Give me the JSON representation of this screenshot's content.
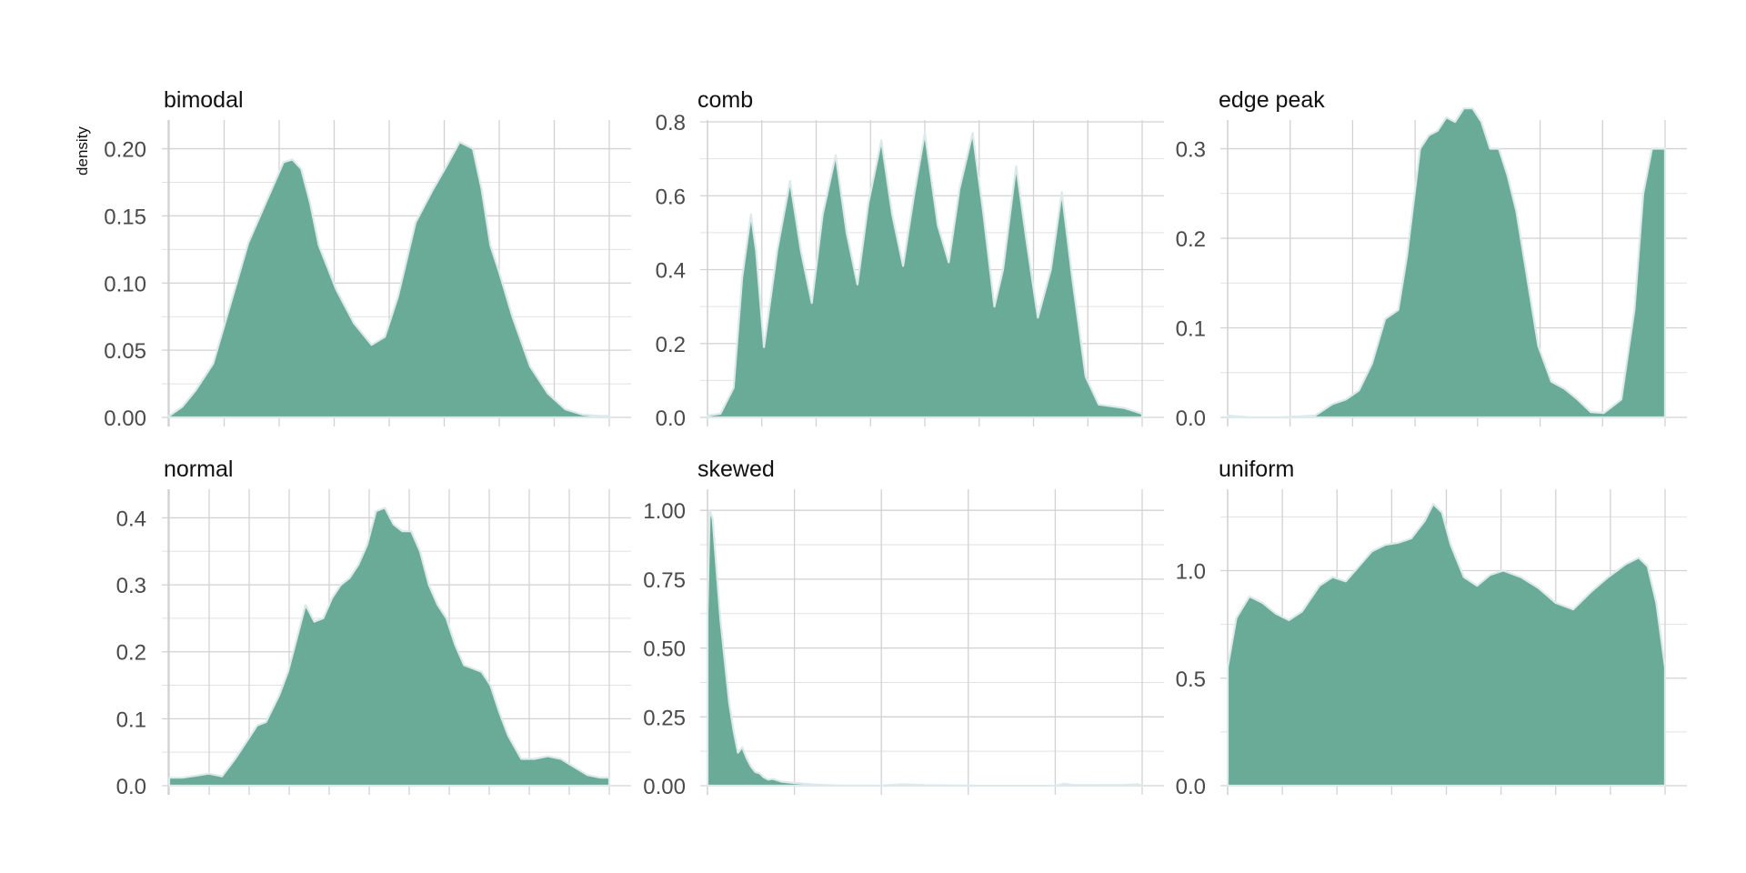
{
  "colors": {
    "fill": "#69ab97",
    "outline": "#dde9ea",
    "grid": "#d2d2d2",
    "text": "#111111",
    "tick_text": "#4a4a4a"
  },
  "y_axis_title": "density",
  "chart_data": [
    {
      "type": "area",
      "title": "bimodal",
      "grid": true,
      "ylim": [
        0,
        0.22
      ],
      "yticks": [
        0.0,
        0.05,
        0.1,
        0.15,
        0.2
      ],
      "ytick_labels": [
        "0.00",
        "0.05",
        "0.10",
        "0.15",
        "0.20"
      ],
      "xticks": 9,
      "x": [
        0,
        0.03,
        0.06,
        0.1,
        0.14,
        0.18,
        0.22,
        0.26,
        0.28,
        0.3,
        0.32,
        0.34,
        0.38,
        0.42,
        0.46,
        0.49,
        0.52,
        0.56,
        0.6,
        0.63,
        0.66,
        0.69,
        0.71,
        0.73,
        0.75,
        0.78,
        0.82,
        0.86,
        0.9,
        0.94,
        0.98,
        1.0
      ],
      "y": [
        0.001,
        0.008,
        0.02,
        0.04,
        0.085,
        0.13,
        0.16,
        0.19,
        0.192,
        0.185,
        0.16,
        0.128,
        0.095,
        0.07,
        0.054,
        0.06,
        0.09,
        0.145,
        0.17,
        0.187,
        0.205,
        0.2,
        0.17,
        0.128,
        0.108,
        0.075,
        0.038,
        0.018,
        0.006,
        0.002,
        0.001,
        0.001
      ]
    },
    {
      "type": "area",
      "title": "comb",
      "grid": true,
      "ylim": [
        0,
        0.8
      ],
      "yticks": [
        0.0,
        0.2,
        0.4,
        0.6,
        0.8
      ],
      "ytick_labels": [
        "0.0",
        "0.2",
        "0.4",
        "0.6",
        "0.8"
      ],
      "xticks": 9,
      "x": [
        0,
        0.03,
        0.06,
        0.08,
        0.1,
        0.112,
        0.13,
        0.16,
        0.19,
        0.215,
        0.24,
        0.265,
        0.295,
        0.32,
        0.345,
        0.37,
        0.4,
        0.425,
        0.45,
        0.475,
        0.5,
        0.53,
        0.555,
        0.58,
        0.61,
        0.635,
        0.66,
        0.68,
        0.71,
        0.735,
        0.76,
        0.79,
        0.815,
        0.84,
        0.87,
        0.9,
        0.93,
        0.96,
        1.0
      ],
      "y": [
        0.005,
        0.01,
        0.08,
        0.38,
        0.55,
        0.45,
        0.19,
        0.45,
        0.64,
        0.45,
        0.31,
        0.55,
        0.71,
        0.5,
        0.36,
        0.58,
        0.75,
        0.55,
        0.41,
        0.6,
        0.77,
        0.52,
        0.42,
        0.62,
        0.77,
        0.55,
        0.3,
        0.4,
        0.68,
        0.47,
        0.27,
        0.4,
        0.61,
        0.37,
        0.11,
        0.035,
        0.03,
        0.025,
        0.01
      ]
    },
    {
      "type": "area",
      "title": "edge peak",
      "grid": true,
      "ylim": [
        0,
        0.33
      ],
      "yticks": [
        0.0,
        0.1,
        0.2,
        0.3
      ],
      "ytick_labels": [
        "0.0",
        "0.1",
        "0.2",
        "0.3"
      ],
      "xticks": 8,
      "x": [
        0,
        0.05,
        0.12,
        0.2,
        0.24,
        0.27,
        0.3,
        0.33,
        0.36,
        0.39,
        0.41,
        0.44,
        0.46,
        0.48,
        0.5,
        0.52,
        0.54,
        0.56,
        0.58,
        0.6,
        0.62,
        0.64,
        0.66,
        0.68,
        0.71,
        0.74,
        0.77,
        0.8,
        0.83,
        0.86,
        0.9,
        0.93,
        0.95,
        0.97,
        0.99,
        1.0
      ],
      "y": [
        0.002,
        0.0,
        0.0,
        0.002,
        0.015,
        0.02,
        0.03,
        0.06,
        0.11,
        0.12,
        0.18,
        0.3,
        0.315,
        0.32,
        0.335,
        0.33,
        0.345,
        0.345,
        0.33,
        0.3,
        0.3,
        0.27,
        0.23,
        0.17,
        0.08,
        0.04,
        0.032,
        0.02,
        0.006,
        0.005,
        0.02,
        0.12,
        0.25,
        0.3,
        0.3,
        0.3
      ]
    },
    {
      "type": "area",
      "title": "normal",
      "grid": true,
      "ylim": [
        0,
        0.44
      ],
      "yticks": [
        0.0,
        0.1,
        0.2,
        0.3,
        0.4
      ],
      "ytick_labels": [
        "0.0",
        "0.1",
        "0.2",
        "0.3",
        "0.4"
      ],
      "xticks": 12,
      "x": [
        0,
        0.03,
        0.06,
        0.09,
        0.12,
        0.15,
        0.18,
        0.2,
        0.22,
        0.25,
        0.27,
        0.29,
        0.31,
        0.33,
        0.35,
        0.37,
        0.39,
        0.41,
        0.43,
        0.45,
        0.47,
        0.49,
        0.51,
        0.53,
        0.55,
        0.57,
        0.59,
        0.61,
        0.63,
        0.65,
        0.67,
        0.69,
        0.71,
        0.73,
        0.75,
        0.77,
        0.8,
        0.83,
        0.86,
        0.89,
        0.92,
        0.95,
        0.98,
        1.0
      ],
      "y": [
        0.012,
        0.012,
        0.015,
        0.018,
        0.014,
        0.04,
        0.07,
        0.09,
        0.095,
        0.135,
        0.17,
        0.22,
        0.27,
        0.245,
        0.25,
        0.28,
        0.3,
        0.31,
        0.33,
        0.36,
        0.41,
        0.415,
        0.39,
        0.38,
        0.38,
        0.35,
        0.3,
        0.27,
        0.25,
        0.21,
        0.18,
        0.175,
        0.17,
        0.15,
        0.11,
        0.075,
        0.04,
        0.04,
        0.044,
        0.04,
        0.028,
        0.016,
        0.012,
        0.012
      ]
    },
    {
      "type": "area",
      "title": "skewed",
      "grid": true,
      "ylim": [
        0,
        1.07
      ],
      "yticks": [
        0.0,
        0.25,
        0.5,
        0.75,
        1.0
      ],
      "ytick_labels": [
        "0.00",
        "0.25",
        "0.50",
        "0.75",
        "1.00"
      ],
      "xticks": 6,
      "x": [
        0,
        0.005,
        0.012,
        0.02,
        0.03,
        0.04,
        0.05,
        0.06,
        0.07,
        0.08,
        0.09,
        0.1,
        0.11,
        0.12,
        0.13,
        0.14,
        0.15,
        0.17,
        0.2,
        0.25,
        0.3,
        0.4,
        0.45,
        0.5,
        0.6,
        0.8,
        0.82,
        0.84,
        0.95,
        0.99,
        1.0
      ],
      "y": [
        0.63,
        1.0,
        0.97,
        0.8,
        0.6,
        0.45,
        0.3,
        0.2,
        0.12,
        0.14,
        0.1,
        0.07,
        0.05,
        0.045,
        0.03,
        0.022,
        0.025,
        0.015,
        0.01,
        0.004,
        0.001,
        0.0,
        0.005,
        0.002,
        0.0,
        0.0,
        0.007,
        0.003,
        0.002,
        0.005,
        0.0
      ]
    },
    {
      "type": "area",
      "title": "uniform",
      "grid": true,
      "ylim": [
        0,
        1.37
      ],
      "yticks": [
        0.0,
        0.5,
        1.0
      ],
      "ytick_labels": [
        "0.0",
        "0.5",
        "1.0"
      ],
      "xticks": 9,
      "x": [
        0,
        0.02,
        0.05,
        0.08,
        0.11,
        0.14,
        0.17,
        0.21,
        0.24,
        0.27,
        0.3,
        0.33,
        0.36,
        0.39,
        0.42,
        0.45,
        0.47,
        0.49,
        0.51,
        0.54,
        0.57,
        0.6,
        0.63,
        0.67,
        0.71,
        0.75,
        0.79,
        0.83,
        0.87,
        0.91,
        0.94,
        0.96,
        0.98,
        0.99,
        1.0
      ],
      "y": [
        0.55,
        0.78,
        0.88,
        0.85,
        0.8,
        0.77,
        0.81,
        0.93,
        0.97,
        0.95,
        1.02,
        1.09,
        1.12,
        1.13,
        1.15,
        1.23,
        1.31,
        1.27,
        1.12,
        0.97,
        0.93,
        0.98,
        1.0,
        0.97,
        0.92,
        0.85,
        0.82,
        0.9,
        0.97,
        1.03,
        1.06,
        1.02,
        0.85,
        0.7,
        0.55
      ]
    }
  ]
}
